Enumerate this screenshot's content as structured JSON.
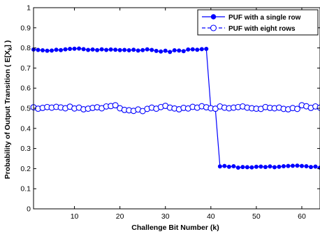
{
  "chart_data": {
    "type": "line",
    "xlabel": "Challenge Bit Number (k)",
    "ylabel": "Probability of Output Transition ( E[X",
    "ylabel_sub": "k",
    "ylabel_tail": "] )",
    "xlim": [
      1,
      64
    ],
    "ylim": [
      0,
      1
    ],
    "xticks": [
      10,
      20,
      30,
      40,
      50,
      60
    ],
    "yticks": [
      0,
      0.1,
      0.2,
      0.3,
      0.4,
      0.5,
      0.6,
      0.7,
      0.8,
      0.9,
      1
    ],
    "ytick_labels": [
      "0",
      "0.1",
      "0.2",
      "0.3",
      "0.4",
      "0.5",
      "0.6",
      "0.7",
      "0.8",
      "0.9",
      "1"
    ],
    "grid": false,
    "legend_position": "top-right",
    "colors": {
      "series": "#0000ff",
      "axis": "#000000"
    },
    "x": [
      1,
      2,
      3,
      4,
      5,
      6,
      7,
      8,
      9,
      10,
      11,
      12,
      13,
      14,
      15,
      16,
      17,
      18,
      19,
      20,
      21,
      22,
      23,
      24,
      25,
      26,
      27,
      28,
      29,
      30,
      31,
      32,
      33,
      34,
      35,
      36,
      37,
      38,
      39,
      40,
      41,
      42,
      43,
      44,
      45,
      46,
      47,
      48,
      49,
      50,
      51,
      52,
      53,
      54,
      55,
      56,
      57,
      58,
      59,
      60,
      61,
      62,
      63,
      64
    ],
    "series": [
      {
        "name": "PUF with a single row",
        "marker": "filled-circle",
        "line": "solid",
        "values": [
          0.792,
          0.79,
          0.788,
          0.786,
          0.787,
          0.791,
          0.789,
          0.793,
          0.795,
          0.796,
          0.797,
          0.794,
          0.79,
          0.792,
          0.789,
          0.793,
          0.79,
          0.792,
          0.791,
          0.789,
          0.79,
          0.788,
          0.791,
          0.787,
          0.789,
          0.793,
          0.79,
          0.785,
          0.782,
          0.786,
          0.78,
          0.788,
          0.787,
          0.784,
          0.792,
          0.793,
          0.791,
          0.794,
          0.795,
          0.497,
          0.493,
          0.211,
          0.213,
          0.209,
          0.212,
          0.205,
          0.208,
          0.207,
          0.206,
          0.209,
          0.21,
          0.208,
          0.211,
          0.207,
          0.209,
          0.212,
          0.213,
          0.214,
          0.215,
          0.213,
          0.212,
          0.208,
          0.21,
          0.205
        ]
      },
      {
        "name": "PUF with eight rows",
        "marker": "open-circle",
        "line": "dashed",
        "values": [
          0.505,
          0.498,
          0.502,
          0.506,
          0.503,
          0.507,
          0.504,
          0.5,
          0.508,
          0.499,
          0.503,
          0.495,
          0.498,
          0.502,
          0.505,
          0.5,
          0.509,
          0.511,
          0.515,
          0.5,
          0.492,
          0.49,
          0.487,
          0.494,
          0.486,
          0.497,
          0.503,
          0.498,
          0.506,
          0.512,
          0.503,
          0.499,
          0.495,
          0.502,
          0.499,
          0.507,
          0.503,
          0.51,
          0.505,
          0.5,
          0.498,
          0.509,
          0.503,
          0.5,
          0.503,
          0.506,
          0.509,
          0.503,
          0.5,
          0.498,
          0.497,
          0.506,
          0.502,
          0.5,
          0.503,
          0.497,
          0.495,
          0.501,
          0.497,
          0.515,
          0.51,
          0.502,
          0.509,
          0.503
        ]
      }
    ]
  }
}
